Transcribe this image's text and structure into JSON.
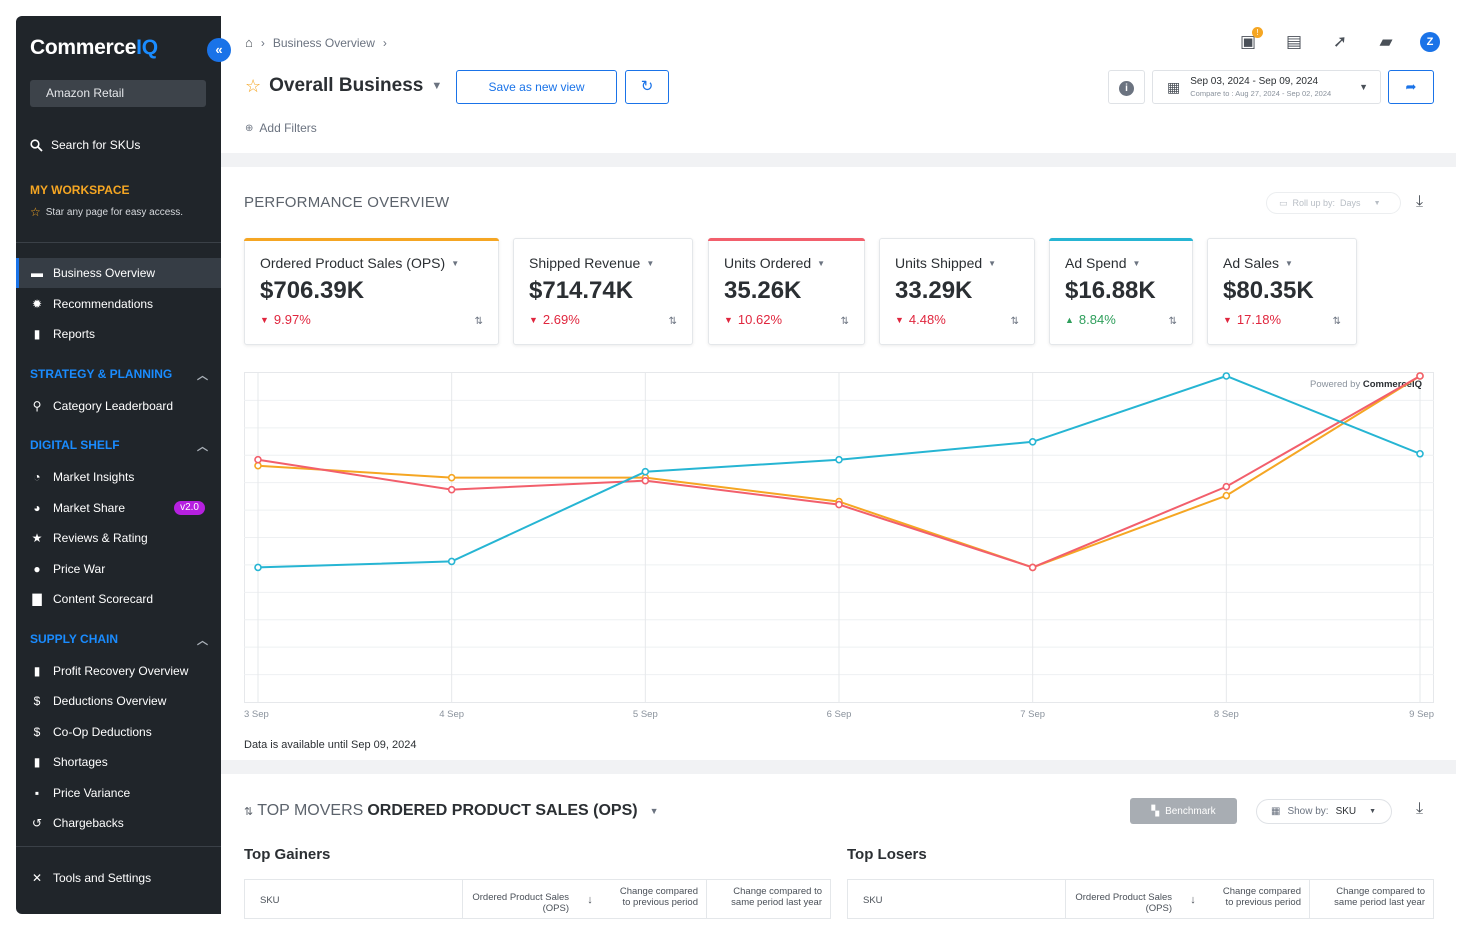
{
  "sidebar": {
    "logo_main": "Commerce",
    "logo_accent": "IQ",
    "collapse_icon": "«",
    "retailer": "Amazon Retail",
    "search_label": "Search for SKUs",
    "workspace_title": "MY WORKSPACE",
    "workspace_hint": "Star any page for easy access.",
    "items_top": [
      {
        "label": "Business Overview",
        "icon": "store-icon",
        "glyph": "▬"
      },
      {
        "label": "Recommendations",
        "icon": "lightbulb-icon",
        "glyph": "✹"
      },
      {
        "label": "Reports",
        "icon": "report-icon",
        "glyph": "▮"
      }
    ],
    "sections": [
      {
        "title": "STRATEGY & PLANNING",
        "items": [
          {
            "label": "Category Leaderboard",
            "icon": "leaderboard-icon",
            "glyph": "⚲"
          }
        ]
      },
      {
        "title": "DIGITAL SHELF",
        "items": [
          {
            "label": "Market Insights",
            "icon": "insights-icon",
            "glyph": "◔"
          },
          {
            "label": "Market Share",
            "icon": "market-share-icon",
            "glyph": "◕",
            "badge": "v2.0"
          },
          {
            "label": "Reviews & Rating",
            "icon": "star-icon",
            "glyph": "★"
          },
          {
            "label": "Price War",
            "icon": "price-war-icon",
            "glyph": "●"
          },
          {
            "label": "Content Scorecard",
            "icon": "scorecard-icon",
            "glyph": "▇"
          }
        ]
      },
      {
        "title": "SUPPLY CHAIN",
        "items": [
          {
            "label": "Profit Recovery Overview",
            "icon": "document-icon",
            "glyph": "▮"
          },
          {
            "label": "Deductions Overview",
            "icon": "dollar-icon",
            "glyph": "$"
          },
          {
            "label": "Co-Op Deductions",
            "icon": "dollar-icon",
            "glyph": "$"
          },
          {
            "label": "Shortages",
            "icon": "document-icon",
            "glyph": "▮"
          },
          {
            "label": "Price Variance",
            "icon": "price-tag-icon",
            "glyph": "▪"
          },
          {
            "label": "Chargebacks",
            "icon": "history-icon",
            "glyph": "↺"
          }
        ]
      }
    ],
    "tools_label": "Tools and Settings"
  },
  "header": {
    "breadcrumb": "Business Overview",
    "view_title": "Overall Business",
    "save_view_label": "Save as new view",
    "date_range": "Sep 03, 2024 - Sep 09, 2024",
    "compare_to": "Compare to : Aug 27, 2024 - Sep 02, 2024",
    "add_filters": "Add Filters",
    "notification_count": "!",
    "avatar_initial": "Z"
  },
  "performance": {
    "title": "PERFORMANCE OVERVIEW",
    "rollup_label": "Roll up by:",
    "rollup_value": "Days",
    "kpis": [
      {
        "name": "Ordered Product Sales (OPS)",
        "value": "$706.39K",
        "change": "9.97%",
        "direction": "down",
        "color": "#f5a623"
      },
      {
        "name": "Shipped Revenue",
        "value": "$714.74K",
        "change": "2.69%",
        "direction": "down",
        "color": ""
      },
      {
        "name": "Units Ordered",
        "value": "35.26K",
        "change": "10.62%",
        "direction": "down",
        "color": "#f25f6c"
      },
      {
        "name": "Units Shipped",
        "value": "33.29K",
        "change": "4.48%",
        "direction": "down",
        "color": ""
      },
      {
        "name": "Ad Spend",
        "value": "$16.88K",
        "change": "8.84%",
        "direction": "up",
        "color": "#26b5d3"
      },
      {
        "name": "Ad Sales",
        "value": "$80.35K",
        "change": "17.18%",
        "direction": "down",
        "color": ""
      }
    ],
    "availability": "Data is available until Sep 09, 2024"
  },
  "chart_data": {
    "type": "line",
    "title": "",
    "watermark_prefix": "Powered by",
    "watermark_brand": "CommerceIQ",
    "categories": [
      "3 Sep",
      "4 Sep",
      "5 Sep",
      "6 Sep",
      "7 Sep",
      "8 Sep",
      "9 Sep"
    ],
    "ylim": [
      0,
      100
    ],
    "series": [
      {
        "name": "Ordered Product Sales (OPS)",
        "color": "#f5a623",
        "values": [
          79,
          75,
          75,
          67,
          45,
          69,
          109
        ]
      },
      {
        "name": "Units Ordered",
        "color": "#f25f6c",
        "values": [
          81,
          71,
          74,
          66,
          45,
          72,
          109
        ]
      },
      {
        "name": "Ad Spend",
        "color": "#26b5d3",
        "values": [
          45,
          47,
          77,
          81,
          87,
          109,
          83
        ]
      }
    ]
  },
  "top_movers": {
    "prefix": "TOP MOVERS",
    "metric": "ORDERED PRODUCT SALES (OPS)",
    "benchmark_label": "Benchmark",
    "showby_label": "Show by:",
    "showby_value": "SKU",
    "gainers_title": "Top Gainers",
    "losers_title": "Top Losers",
    "columns": [
      "SKU",
      "Ordered Product Sales (OPS)",
      "Change compared to previous period",
      "Change compared to same period last year"
    ]
  }
}
